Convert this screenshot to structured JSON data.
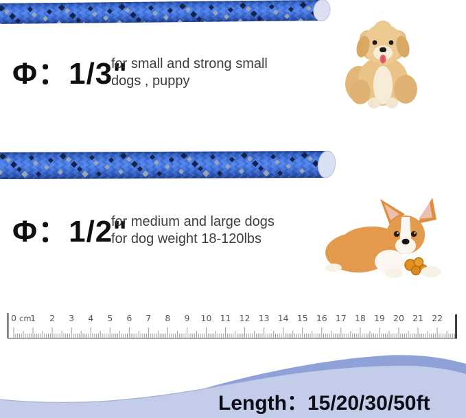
{
  "product_sections": [
    {
      "diameter_label": "Φ：1/3\"",
      "description_line1": "for small and strong small",
      "description_line2": "dogs , puppy",
      "dog_image": "cream fluffy puppy sitting",
      "rope": "thin blue reflective rope"
    },
    {
      "diameter_label": "Φ：1/2\"",
      "description_line1": "for medium and large dogs",
      "description_line2": "for dog weight 18-120lbs",
      "dog_image": "corgi puppy lying with orange toy",
      "rope": "thick blue reflective rope"
    }
  ],
  "ruler": {
    "unit_label": "cm",
    "numbers": [
      "0",
      "1",
      "2",
      "3",
      "4",
      "5",
      "6",
      "7",
      "8",
      "9",
      "10",
      "11",
      "12",
      "13",
      "14",
      "15",
      "16",
      "17",
      "18",
      "19",
      "20",
      "21",
      "22"
    ]
  },
  "footer": {
    "length_label": "Length：15/20/30/50ft"
  },
  "colors": {
    "rope_blue": "#4a7ce8",
    "rope_dark_speckle": "#14234a",
    "rope_gray_speckle": "#9aa5b8",
    "rope_end_cap": "#dcdef2",
    "wave_light": "#c3cce9",
    "wave_dark": "#8ea2d8",
    "ruler_gray": "#8a8a8a",
    "heading_text": "#0f0f0f",
    "body_text": "#3d3d3d"
  }
}
